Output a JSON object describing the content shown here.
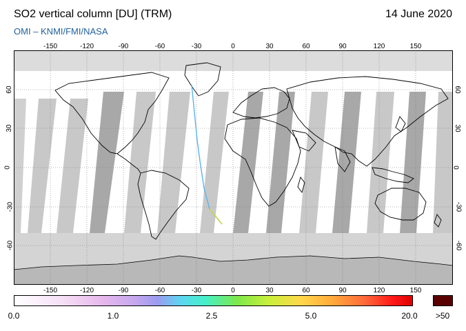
{
  "header": {
    "title": "SO2 vertical column [DU] (TRM)",
    "date": "14 June 2020",
    "source": "OMI  –  KNMI/FMI/NASA"
  },
  "map": {
    "longitude_ticks": [
      "-150",
      "-120",
      "-90",
      "-60",
      "-30",
      "0",
      "30",
      "60",
      "90",
      "120",
      "150"
    ],
    "latitude_ticks": [
      "60",
      "30",
      "0",
      "-30",
      "-60"
    ],
    "colors": {
      "land_outline": "#000000",
      "no_data_gray": "#a8a8a8",
      "light_gray": "#d6d6d6",
      "ocean_white": "#ffffff"
    }
  },
  "colorbar": {
    "labels": [
      "0.0",
      "1.0",
      "2.5",
      "5.0",
      "20.0"
    ],
    "overflow_label": ">50",
    "overflow_color": "#5a0000"
  }
}
